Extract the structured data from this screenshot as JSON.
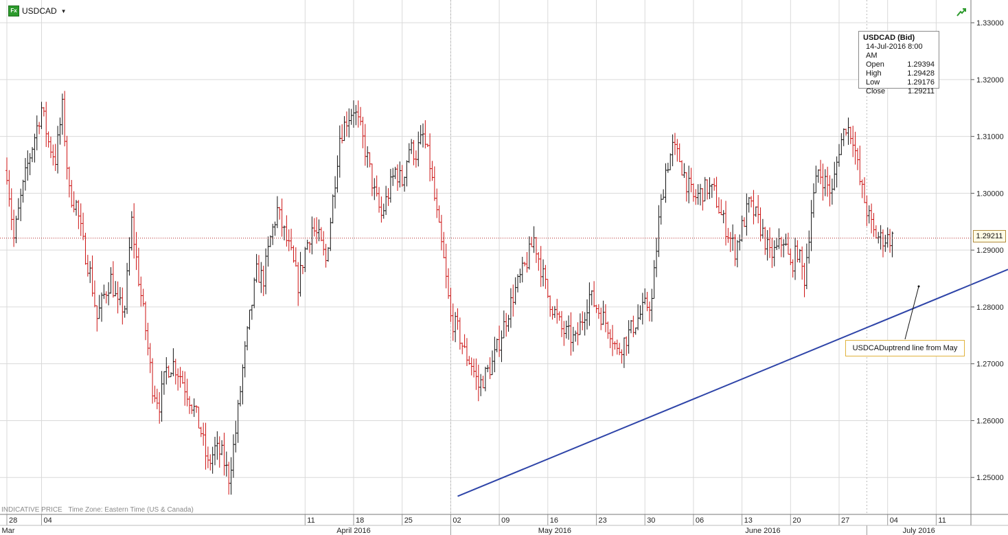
{
  "header": {
    "icon_label": "Fx",
    "symbol": "USDCAD"
  },
  "ohlc": {
    "title": "USDCAD (Bid)",
    "datetime": "14-Jul-2016 8:00 AM",
    "rows": [
      {
        "label": "Open",
        "value": "1.29394"
      },
      {
        "label": "High",
        "value": "1.29428"
      },
      {
        "label": "Low",
        "value": "1.29176"
      },
      {
        "label": "Close",
        "value": "1.29211"
      }
    ]
  },
  "last_price": "1.29211",
  "annotation": "USDCADuptrend line from May",
  "footer": {
    "indicative": "INDICATIVE PRICE",
    "timezone": "Time Zone: Eastern Time (US & Canada)"
  },
  "colors": {
    "up": "#111111",
    "down": "#cc1111",
    "trendline": "#2e44a8",
    "price_line": "#b22222"
  },
  "chart_data": {
    "type": "ohlc",
    "title": "",
    "series": [
      {
        "name": ""
      }
    ],
    "ylim": [
      1.2435,
      1.334
    ],
    "yticks": [
      "1.25000",
      "1.26000",
      "1.27000",
      "1.28000",
      "1.29000",
      "1.30000",
      "1.31000",
      "1.32000",
      "1.33000"
    ],
    "x_range": [
      "2016-02-28",
      "2016-07-17"
    ],
    "x_ticks": [
      {
        "date": "2016-02-28",
        "label": "28"
      },
      {
        "date": "2016-03-04",
        "label": "04"
      },
      {
        "date": "2016-04-11",
        "label": "11"
      },
      {
        "date": "2016-04-18",
        "label": "18"
      },
      {
        "date": "2016-04-25",
        "label": "25"
      },
      {
        "date": "2016-05-02",
        "label": "02"
      },
      {
        "date": "2016-05-09",
        "label": "09"
      },
      {
        "date": "2016-05-16",
        "label": "16"
      },
      {
        "date": "2016-05-23",
        "label": "23"
      },
      {
        "date": "2016-05-30",
        "label": "30"
      },
      {
        "date": "2016-06-06",
        "label": "06"
      },
      {
        "date": "2016-06-13",
        "label": "13"
      },
      {
        "date": "2016-06-20",
        "label": "20"
      },
      {
        "date": "2016-06-27",
        "label": "27"
      },
      {
        "date": "2016-07-04",
        "label": "04"
      },
      {
        "date": "2016-07-11",
        "label": "11"
      }
    ],
    "months": [
      {
        "label": "Mar",
        "start": "2016-02-28",
        "end": "2016-04-04"
      },
      {
        "label": "April 2016",
        "start": "2016-04-04",
        "end": "2016-05-02"
      },
      {
        "label": "May 2016",
        "start": "2016-05-02",
        "end": "2016-06-01"
      },
      {
        "label": "June 2016",
        "start": "2016-06-01",
        "end": "2016-07-01"
      },
      {
        "label": "July 2016",
        "start": "2016-07-01",
        "end": "2016-07-17"
      }
    ],
    "month_dividers": [
      "2016-05-02",
      "2016-07-01"
    ],
    "control_points": [
      [
        "2016-02-28",
        1.304
      ],
      [
        "2016-02-29",
        1.292
      ],
      [
        "2016-03-01",
        1.299
      ],
      [
        "2016-03-02",
        1.305
      ],
      [
        "2016-03-03",
        1.31
      ],
      [
        "2016-03-04",
        1.315
      ],
      [
        "2016-03-05",
        1.309
      ],
      [
        "2016-03-06",
        1.306
      ],
      [
        "2016-03-07",
        1.315
      ],
      [
        "2016-03-08",
        1.3
      ],
      [
        "2016-03-09",
        1.298
      ],
      [
        "2016-03-10",
        1.291
      ],
      [
        "2016-03-11",
        1.286
      ],
      [
        "2016-03-12",
        1.278
      ],
      [
        "2016-03-13",
        1.282
      ],
      [
        "2016-03-14",
        1.285
      ],
      [
        "2016-03-15",
        1.28
      ],
      [
        "2016-03-16",
        1.28
      ],
      [
        "2016-03-17",
        1.295
      ],
      [
        "2016-03-18",
        1.285
      ],
      [
        "2016-03-19",
        1.276
      ],
      [
        "2016-03-20",
        1.266
      ],
      [
        "2016-03-21",
        1.263
      ],
      [
        "2016-03-22",
        1.269
      ],
      [
        "2016-03-23",
        1.27
      ],
      [
        "2016-03-24",
        1.268
      ],
      [
        "2016-03-25",
        1.265
      ],
      [
        "2016-03-26",
        1.262
      ],
      [
        "2016-03-27",
        1.258
      ],
      [
        "2016-03-28",
        1.252
      ],
      [
        "2016-03-29",
        1.255
      ],
      [
        "2016-03-30",
        1.254
      ],
      [
        "2016-03-31",
        1.25
      ],
      [
        "2016-04-01",
        1.258
      ],
      [
        "2016-04-02",
        1.269
      ],
      [
        "2016-04-03",
        1.278
      ],
      [
        "2016-04-04",
        1.286
      ],
      [
        "2016-04-05",
        1.285
      ],
      [
        "2016-04-06",
        1.292
      ],
      [
        "2016-04-07",
        1.297
      ],
      [
        "2016-04-08",
        1.293
      ],
      [
        "2016-04-09",
        1.289
      ],
      [
        "2016-04-10",
        1.284
      ],
      [
        "2016-04-11",
        1.29
      ],
      [
        "2016-04-12",
        1.294
      ],
      [
        "2016-04-13",
        1.292
      ],
      [
        "2016-04-14",
        1.288
      ],
      [
        "2016-04-15",
        1.299
      ],
      [
        "2016-04-16",
        1.31
      ],
      [
        "2016-04-17",
        1.313
      ],
      [
        "2016-04-18",
        1.315
      ],
      [
        "2016-04-19",
        1.311
      ],
      [
        "2016-04-20",
        1.306
      ],
      [
        "2016-04-21",
        1.3
      ],
      [
        "2016-04-22",
        1.296
      ],
      [
        "2016-04-23",
        1.3
      ],
      [
        "2016-04-24",
        1.304
      ],
      [
        "2016-04-25",
        1.302
      ],
      [
        "2016-04-26",
        1.308
      ],
      [
        "2016-04-27",
        1.307
      ],
      [
        "2016-04-28",
        1.31
      ],
      [
        "2016-04-29",
        1.305
      ],
      [
        "2016-04-30",
        1.296
      ],
      [
        "2016-05-01",
        1.288
      ],
      [
        "2016-05-02",
        1.278
      ],
      [
        "2016-05-03",
        1.276
      ],
      [
        "2016-05-04",
        1.272
      ],
      [
        "2016-05-05",
        1.27
      ],
      [
        "2016-05-06",
        1.266
      ],
      [
        "2016-05-07",
        1.268
      ],
      [
        "2016-05-08",
        1.27
      ],
      [
        "2016-05-09",
        1.274
      ],
      [
        "2016-05-10",
        1.278
      ],
      [
        "2016-05-11",
        1.282
      ],
      [
        "2016-05-12",
        1.285
      ],
      [
        "2016-05-13",
        1.288
      ],
      [
        "2016-05-14",
        1.292
      ],
      [
        "2016-05-15",
        1.287
      ],
      [
        "2016-05-16",
        1.282
      ],
      [
        "2016-05-17",
        1.279
      ],
      [
        "2016-05-18",
        1.276
      ],
      [
        "2016-05-19",
        1.275
      ],
      [
        "2016-05-20",
        1.274
      ],
      [
        "2016-05-21",
        1.278
      ],
      [
        "2016-05-22",
        1.282
      ],
      [
        "2016-05-23",
        1.28
      ],
      [
        "2016-05-24",
        1.278
      ],
      [
        "2016-05-25",
        1.276
      ],
      [
        "2016-05-26",
        1.272
      ],
      [
        "2016-05-27",
        1.274
      ],
      [
        "2016-05-28",
        1.276
      ],
      [
        "2016-05-29",
        1.278
      ],
      [
        "2016-05-30",
        1.28
      ],
      [
        "2016-05-31",
        1.281
      ],
      [
        "2016-06-01",
        1.295
      ],
      [
        "2016-06-02",
        1.304
      ],
      [
        "2016-06-03",
        1.308
      ],
      [
        "2016-06-04",
        1.306
      ],
      [
        "2016-06-05",
        1.302
      ],
      [
        "2016-06-06",
        1.299
      ],
      [
        "2016-06-07",
        1.3
      ],
      [
        "2016-06-08",
        1.301
      ],
      [
        "2016-06-09",
        1.3
      ],
      [
        "2016-06-10",
        1.296
      ],
      [
        "2016-06-11",
        1.293
      ],
      [
        "2016-06-12",
        1.29
      ],
      [
        "2016-06-13",
        1.294
      ],
      [
        "2016-06-14",
        1.298
      ],
      [
        "2016-06-15",
        1.296
      ],
      [
        "2016-06-16",
        1.293
      ],
      [
        "2016-06-17",
        1.289
      ],
      [
        "2016-06-18",
        1.29
      ],
      [
        "2016-06-19",
        1.292
      ],
      [
        "2016-06-20",
        1.287
      ],
      [
        "2016-06-21",
        1.29
      ],
      [
        "2016-06-22",
        1.285
      ],
      [
        "2016-06-23",
        1.297
      ],
      [
        "2016-06-24",
        1.304
      ],
      [
        "2016-06-25",
        1.302
      ],
      [
        "2016-06-26",
        1.3
      ],
      [
        "2016-06-27",
        1.308
      ],
      [
        "2016-06-28",
        1.312
      ],
      [
        "2016-06-29",
        1.31
      ],
      [
        "2016-06-30",
        1.302
      ],
      [
        "2016-07-01",
        1.297
      ],
      [
        "2016-07-02",
        1.293
      ],
      [
        "2016-07-03",
        1.292
      ],
      [
        "2016-07-04",
        1.2921
      ],
      [
        "2016-07-17",
        1.2921
      ]
    ],
    "trendline": {
      "from": [
        "2016-05-03",
        1.2467
      ],
      "to": [
        "2016-07-17",
        1.2866
      ]
    },
    "last_value": 1.29211
  }
}
